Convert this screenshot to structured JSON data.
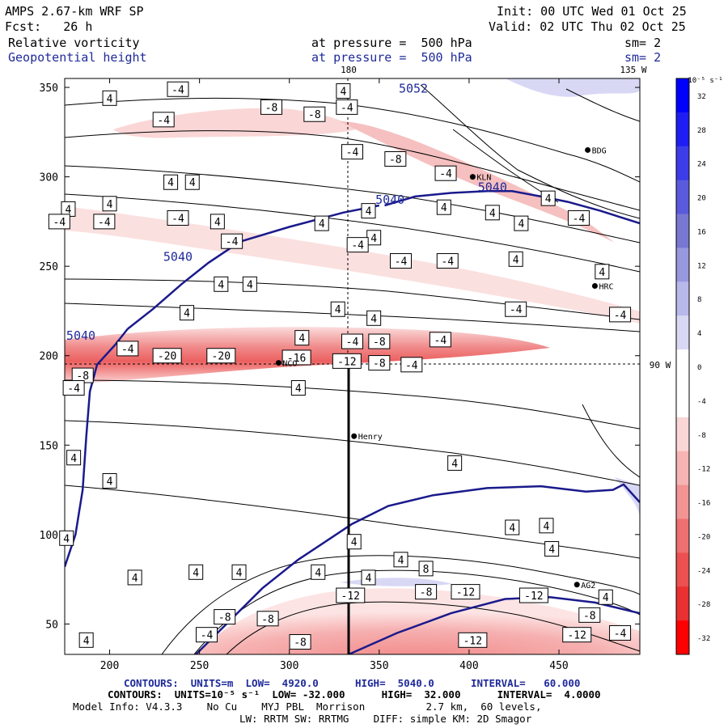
{
  "header": {
    "model": "AMPS 2.67-km WRF SP",
    "fcst": "Fcst:   26 h",
    "init": "Init: 00 UTC Wed 01 Oct 25",
    "valid": "Valid: 02 UTC Thu 02 Oct 25",
    "field1": "Relative vorticity",
    "field2": "Geopotential height",
    "pressure1": "at pressure =  500 hPa",
    "pressure2": "at pressure =  500 hPa",
    "sm1": "sm= 2",
    "sm2": "sm= 2"
  },
  "footer": {
    "line1": "CONTOURS:  UNITS=m  LOW=  4920.0      HIGH=  5040.0      INTERVAL=   60.000",
    "line2": "CONTOURS:  UNITS=10⁻⁵ s⁻¹  LOW= -32.000      HIGH=  32.000      INTERVAL=  4.0000",
    "line3": "Model Info: V4.3.3    No Cu    MYJ PBL  Morrison          2.7 km,  60 levels,",
    "line4": "LW: RRTM SW: RRTMG    DIFF: simple KM: 2D Smagor"
  },
  "colors": {
    "height_contour": "#1a1a8c",
    "blue_text": "#1f2a9a",
    "grid_dash": "#000000"
  },
  "chart_data": {
    "type": "heatmap",
    "title": "Relative vorticity / Geopotential height at 500 hPa",
    "xlim": [
      175,
      495
    ],
    "ylim": [
      33,
      355
    ],
    "xticks": [
      200,
      250,
      300,
      350,
      400,
      450
    ],
    "yticks": [
      50,
      100,
      150,
      200,
      250,
      300,
      350
    ],
    "grid_labels": {
      "meridian_180": "180",
      "meridian_135w": "135 W",
      "parallel_90w": "90 W"
    },
    "colorbar": {
      "units": "10⁻⁵ s⁻¹",
      "ticks": [
        "32",
        "28",
        "24",
        "20",
        "16",
        "12",
        "8",
        "4",
        "0",
        "-4",
        "-8",
        "-12",
        "-16",
        "-20",
        "-24",
        "-28",
        "-32"
      ],
      "colors": [
        "#0000ff",
        "#1e1ef4",
        "#3c3ce9",
        "#5a5adc",
        "#7878d2",
        "#9898de",
        "#b8b8eb",
        "#d8d8f5",
        "#ffffff",
        "#ffffff",
        "#fad6d6",
        "#f6b4b4",
        "#f29494",
        "#ee7070",
        "#ec5050",
        "#ea3030",
        "#ff0000"
      ]
    },
    "stations": [
      {
        "name": "BDG",
        "x": 466,
        "y": 315
      },
      {
        "name": "KLN",
        "x": 402,
        "y": 300
      },
      {
        "name": "HRC",
        "x": 470,
        "y": 239
      },
      {
        "name": "NCO",
        "x": 294,
        "y": 196
      },
      {
        "name": "Henry",
        "x": 336,
        "y": 155
      },
      {
        "name": "AG2",
        "x": 460,
        "y": 72
      }
    ],
    "height_labels": [
      {
        "text": "5052",
        "x": 369,
        "y": 347
      },
      {
        "text": "5040",
        "x": 413,
        "y": 292
      },
      {
        "text": "5040",
        "x": 356,
        "y": 285
      },
      {
        "text": "5040",
        "x": 238,
        "y": 253
      },
      {
        "text": "5040",
        "x": 184,
        "y": 209
      }
    ],
    "vorticity_labels": [
      {
        "text": "4",
        "x": 200,
        "y": 344
      },
      {
        "text": "-4",
        "x": 238,
        "y": 349
      },
      {
        "text": "4",
        "x": 330,
        "y": 348
      },
      {
        "text": "-4",
        "x": 230,
        "y": 332
      },
      {
        "text": "-8",
        "x": 290,
        "y": 339
      },
      {
        "text": "-8",
        "x": 314,
        "y": 335
      },
      {
        "text": "-4",
        "x": 332,
        "y": 339
      },
      {
        "text": "-4",
        "x": 335,
        "y": 314
      },
      {
        "text": "-8",
        "x": 359,
        "y": 310
      },
      {
        "text": "-4",
        "x": 387,
        "y": 302
      },
      {
        "text": "4",
        "x": 234,
        "y": 297
      },
      {
        "text": "4",
        "x": 246,
        "y": 297
      },
      {
        "text": "4",
        "x": 200,
        "y": 285
      },
      {
        "text": "-4",
        "x": 197,
        "y": 275
      },
      {
        "text": "4",
        "x": 177,
        "y": 282
      },
      {
        "text": "-4",
        "x": 238,
        "y": 277
      },
      {
        "text": "4",
        "x": 260,
        "y": 275
      },
      {
        "text": "-4",
        "x": 172,
        "y": 275
      },
      {
        "text": "-4",
        "x": 268,
        "y": 264
      },
      {
        "text": "4",
        "x": 344,
        "y": 281
      },
      {
        "text": "4",
        "x": 347,
        "y": 266
      },
      {
        "text": "4",
        "x": 318,
        "y": 274
      },
      {
        "text": "-4",
        "x": 338,
        "y": 262
      },
      {
        "text": "4",
        "x": 386,
        "y": 283
      },
      {
        "text": "4",
        "x": 413,
        "y": 280
      },
      {
        "text": "4",
        "x": 444,
        "y": 288
      },
      {
        "text": "-4",
        "x": 461,
        "y": 277
      },
      {
        "text": "4",
        "x": 429,
        "y": 274
      },
      {
        "text": "-4",
        "x": 362,
        "y": 253
      },
      {
        "text": "-4",
        "x": 388,
        "y": 253
      },
      {
        "text": "4",
        "x": 426,
        "y": 254
      },
      {
        "text": "4",
        "x": 474,
        "y": 247
      },
      {
        "text": "4",
        "x": 262,
        "y": 240
      },
      {
        "text": "4",
        "x": 278,
        "y": 240
      },
      {
        "text": "4",
        "x": 243,
        "y": 224
      },
      {
        "text": "4",
        "x": 327,
        "y": 226
      },
      {
        "text": "4",
        "x": 347,
        "y": 221
      },
      {
        "text": "-4",
        "x": 426,
        "y": 226
      },
      {
        "text": "-4",
        "x": 484,
        "y": 223
      },
      {
        "text": "4",
        "x": 307,
        "y": 210
      },
      {
        "text": "-4",
        "x": 210,
        "y": 204
      },
      {
        "text": "-20",
        "x": 232,
        "y": 200
      },
      {
        "text": "-20",
        "x": 262,
        "y": 200
      },
      {
        "text": "-16",
        "x": 304,
        "y": 199
      },
      {
        "text": "-12",
        "x": 332,
        "y": 197
      },
      {
        "text": "-4",
        "x": 335,
        "y": 208
      },
      {
        "text": "-8",
        "x": 350,
        "y": 208
      },
      {
        "text": "-4",
        "x": 384,
        "y": 209
      },
      {
        "text": "-8",
        "x": 350,
        "y": 196
      },
      {
        "text": "-4",
        "x": 368,
        "y": 195
      },
      {
        "text": "-8",
        "x": 185,
        "y": 189
      },
      {
        "text": "-4",
        "x": 180,
        "y": 182
      },
      {
        "text": "4",
        "x": 305,
        "y": 182
      },
      {
        "text": "4",
        "x": 180,
        "y": 143
      },
      {
        "text": "4",
        "x": 200,
        "y": 130
      },
      {
        "text": "4",
        "x": 392,
        "y": 140
      },
      {
        "text": "4",
        "x": 336,
        "y": 96
      },
      {
        "text": "4",
        "x": 176,
        "y": 98
      },
      {
        "text": "4",
        "x": 214,
        "y": 76
      },
      {
        "text": "4",
        "x": 248,
        "y": 79
      },
      {
        "text": "4",
        "x": 272,
        "y": 79
      },
      {
        "text": "4",
        "x": 316,
        "y": 79
      },
      {
        "text": "4",
        "x": 362,
        "y": 86
      },
      {
        "text": "8",
        "x": 376,
        "y": 81
      },
      {
        "text": "4",
        "x": 344,
        "y": 76
      },
      {
        "text": "4",
        "x": 424,
        "y": 104
      },
      {
        "text": "4",
        "x": 443,
        "y": 105
      },
      {
        "text": "4",
        "x": 446,
        "y": 92
      },
      {
        "text": "-12",
        "x": 334,
        "y": 66
      },
      {
        "text": "-8",
        "x": 376,
        "y": 68
      },
      {
        "text": "-12",
        "x": 398,
        "y": 68
      },
      {
        "text": "-12",
        "x": 436,
        "y": 66
      },
      {
        "text": "4",
        "x": 476,
        "y": 65
      },
      {
        "text": "-8",
        "x": 264,
        "y": 54
      },
      {
        "text": "-8",
        "x": 288,
        "y": 53
      },
      {
        "text": "-4",
        "x": 254,
        "y": 44
      },
      {
        "text": "-8",
        "x": 306,
        "y": 40
      },
      {
        "text": "-12",
        "x": 402,
        "y": 41
      },
      {
        "text": "-12",
        "x": 460,
        "y": 44
      },
      {
        "text": "-8",
        "x": 467,
        "y": 55
      },
      {
        "text": "-4",
        "x": 484,
        "y": 45
      },
      {
        "text": "4",
        "x": 187,
        "y": 41
      }
    ],
    "height_contours": [
      {
        "level": 5040,
        "points": [
          [
            353,
            284
          ],
          [
            370,
            289
          ],
          [
            390,
            291
          ],
          [
            410,
            292
          ],
          [
            424,
            292
          ],
          [
            440,
            289
          ],
          [
            455,
            286
          ],
          [
            473,
            281
          ],
          [
            495,
            274
          ]
        ]
      },
      {
        "level": 5040,
        "points": [
          [
            270,
            263
          ],
          [
            300,
            272
          ],
          [
            330,
            280
          ],
          [
            350,
            284
          ]
        ]
      },
      {
        "level": 5040,
        "points": [
          [
            210,
            215
          ],
          [
            224,
            226
          ],
          [
            240,
            240
          ],
          [
            255,
            252
          ],
          [
            270,
            262
          ]
        ]
      },
      {
        "level": 5040,
        "points": [
          [
            175,
            82
          ],
          [
            181,
            100
          ],
          [
            185,
            125
          ],
          [
            187,
            155
          ],
          [
            189,
            180
          ],
          [
            193,
            195
          ],
          [
            203,
            206
          ],
          [
            210,
            215
          ]
        ]
      },
      {
        "level": 5040,
        "points": [
          [
            320,
            96
          ],
          [
            335,
            106
          ],
          [
            355,
            116
          ],
          [
            380,
            122
          ],
          [
            410,
            126
          ],
          [
            440,
            127
          ],
          [
            465,
            124
          ],
          [
            480,
            125
          ],
          [
            486,
            128
          ],
          [
            495,
            118
          ]
        ]
      },
      {
        "level": 5040,
        "points": [
          [
            248,
            33
          ],
          [
            265,
            50
          ],
          [
            285,
            70
          ],
          [
            305,
            86
          ],
          [
            320,
            96
          ]
        ]
      },
      {
        "level": 5040,
        "points": [
          [
            333,
            33
          ],
          [
            360,
            45
          ],
          [
            390,
            56
          ],
          [
            420,
            64
          ],
          [
            445,
            65
          ],
          [
            470,
            62
          ],
          [
            495,
            56
          ]
        ]
      }
    ]
  }
}
